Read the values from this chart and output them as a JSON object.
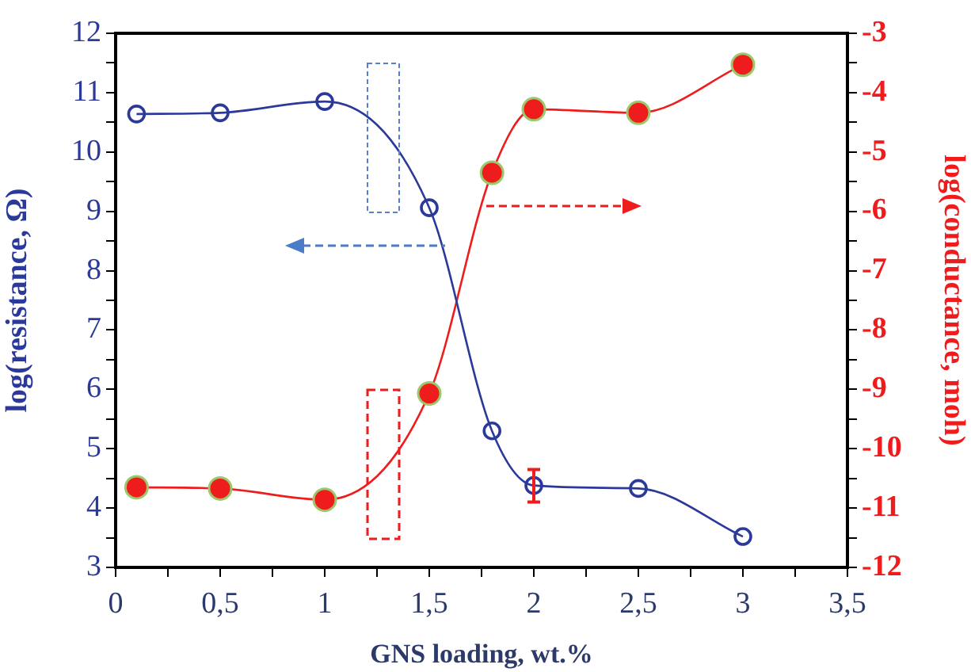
{
  "chart_data": {
    "type": "line",
    "xlabel": "GNS loading, wt.%",
    "ylabel": "log(resistance, Ω)",
    "y2label": "log(conductance, moh)",
    "x": [
      0.1,
      0.5,
      1.0,
      1.5,
      1.8,
      2.0,
      2.5,
      3.0
    ],
    "series": [
      {
        "color": "#2b3a9a",
        "values": [
          10.64,
          10.66,
          10.85,
          9.06,
          5.3,
          4.38,
          4.33,
          3.52
        ],
        "errors": [
          null,
          null,
          null,
          null,
          null,
          [
            4.1,
            4.65
          ],
          null,
          null
        ]
      },
      {
        "color": "#ee1c1c",
        "axis": "y2",
        "values": [
          -10.65,
          -10.67,
          -10.86,
          -9.07,
          -5.35,
          -4.28,
          -4.34,
          -3.53
        ]
      }
    ],
    "xlim": [
      0,
      3.5
    ],
    "xticks": [
      0,
      {
        "value": 0.25,
        "label": null
      },
      {
        "value": 0.5,
        "label": "0,5"
      },
      {
        "value": 0.75,
        "label": null
      },
      1,
      {
        "value": 1.25,
        "label": null
      },
      {
        "value": 1.5,
        "label": "1,5"
      },
      {
        "value": 1.75,
        "label": null
      },
      2,
      {
        "value": 2.25,
        "label": null
      },
      {
        "value": 2.5,
        "label": "2,5"
      },
      {
        "value": 2.75,
        "label": null
      },
      3,
      {
        "value": 3.25,
        "label": null
      },
      {
        "value": 3.5,
        "label": "3,5"
      }
    ],
    "ylim": [
      3,
      12
    ],
    "yticks": [
      3,
      {
        "value": 3.5,
        "label": null
      },
      4,
      {
        "value": 4.5,
        "label": null
      },
      5,
      {
        "value": 5.5,
        "label": null
      },
      6,
      {
        "value": 6.5,
        "label": null
      },
      7,
      {
        "value": 7.5,
        "label": null
      },
      8,
      {
        "value": 8.5,
        "label": null
      },
      9,
      {
        "value": 9.5,
        "label": null
      },
      10,
      {
        "value": 10.5,
        "label": null
      },
      11,
      {
        "value": 11.5,
        "label": null
      },
      12
    ],
    "y2lim": [
      -12,
      -3
    ],
    "y2ticks": [
      -12,
      {
        "value": -11.5,
        "label": null
      },
      -11,
      {
        "value": -10.5,
        "label": null
      },
      -10,
      {
        "value": -9.5,
        "label": null
      },
      -9,
      {
        "value": -8.5,
        "label": null
      },
      -8,
      {
        "value": -7.5,
        "label": null
      },
      -7,
      {
        "value": -6.5,
        "label": null
      },
      -6,
      {
        "value": -5.5,
        "label": null
      },
      -5,
      {
        "value": -4.5,
        "label": null
      },
      -4,
      {
        "value": -3.5,
        "label": null
      },
      -3
    ],
    "grid": false,
    "legend": false,
    "marker": "circle",
    "line_style": "solid"
  }
}
